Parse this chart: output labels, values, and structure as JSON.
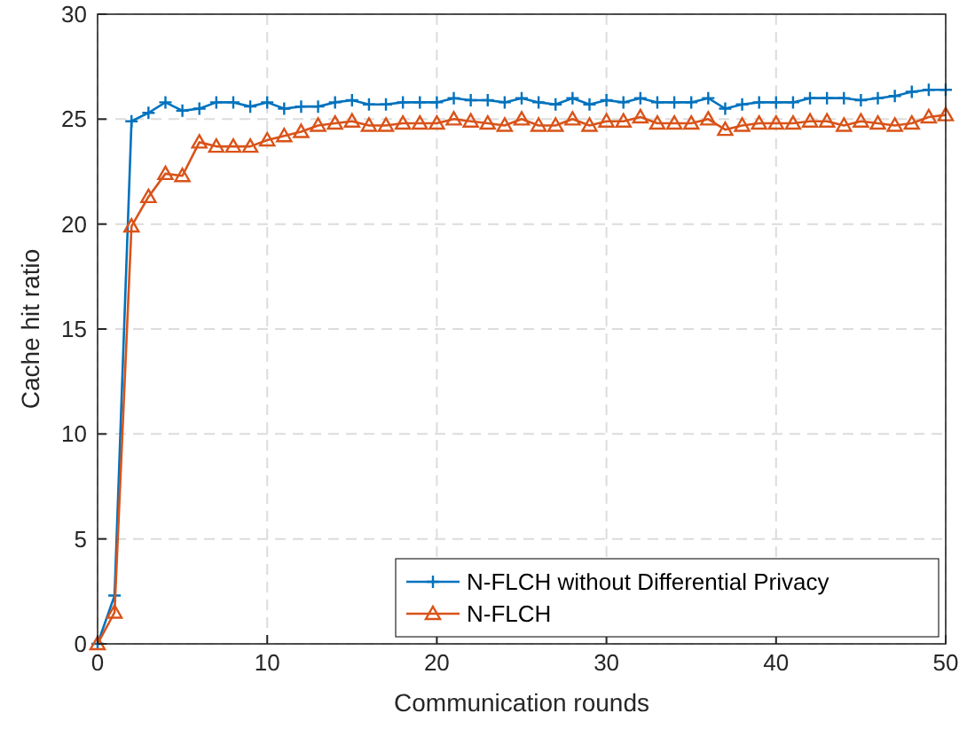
{
  "chart_data": {
    "type": "line",
    "xlabel": "Communication rounds",
    "ylabel": "Cache hit ratio",
    "x": [
      0,
      1,
      2,
      3,
      4,
      5,
      6,
      7,
      8,
      9,
      10,
      11,
      12,
      13,
      14,
      15,
      16,
      17,
      18,
      19,
      20,
      21,
      22,
      23,
      24,
      25,
      26,
      27,
      28,
      29,
      30,
      31,
      32,
      33,
      34,
      35,
      36,
      37,
      38,
      39,
      40,
      41,
      42,
      43,
      44,
      45,
      46,
      47,
      48,
      49,
      50
    ],
    "xlim": [
      0,
      50
    ],
    "xticks": [
      0,
      10,
      20,
      30,
      40,
      50
    ],
    "ylim": [
      0,
      30
    ],
    "yticks": [
      0,
      5,
      10,
      15,
      20,
      25,
      30
    ],
    "grid": true,
    "legend": "bottom right",
    "series": [
      {
        "name": "N-FLCH without Differential Privacy",
        "color": "#0072bd",
        "marker": "cross",
        "values": [
          0,
          2.3,
          24.9,
          25.3,
          25.8,
          25.4,
          25.5,
          25.8,
          25.8,
          25.6,
          25.8,
          25.5,
          25.6,
          25.6,
          25.8,
          25.9,
          25.7,
          25.7,
          25.8,
          25.8,
          25.8,
          26.0,
          25.9,
          25.9,
          25.8,
          26.0,
          25.8,
          25.7,
          26.0,
          25.7,
          25.9,
          25.8,
          26.0,
          25.8,
          25.8,
          25.8,
          26.0,
          25.5,
          25.7,
          25.8,
          25.8,
          25.8,
          26.0,
          26.0,
          26.0,
          25.9,
          26.0,
          26.1,
          26.3,
          26.4,
          26.4
        ]
      },
      {
        "name": "N-FLCH",
        "color": "#d95319",
        "marker": "triangle",
        "values": [
          0,
          1.5,
          19.9,
          21.3,
          22.4,
          22.3,
          23.9,
          23.7,
          23.7,
          23.7,
          24.0,
          24.2,
          24.4,
          24.7,
          24.8,
          24.9,
          24.7,
          24.7,
          24.8,
          24.8,
          24.8,
          25.0,
          24.9,
          24.8,
          24.7,
          25.0,
          24.7,
          24.7,
          25.0,
          24.7,
          24.9,
          24.9,
          25.1,
          24.8,
          24.8,
          24.8,
          25.0,
          24.5,
          24.7,
          24.8,
          24.8,
          24.8,
          24.9,
          24.9,
          24.7,
          24.9,
          24.8,
          24.7,
          24.8,
          25.1,
          25.2
        ]
      }
    ]
  }
}
